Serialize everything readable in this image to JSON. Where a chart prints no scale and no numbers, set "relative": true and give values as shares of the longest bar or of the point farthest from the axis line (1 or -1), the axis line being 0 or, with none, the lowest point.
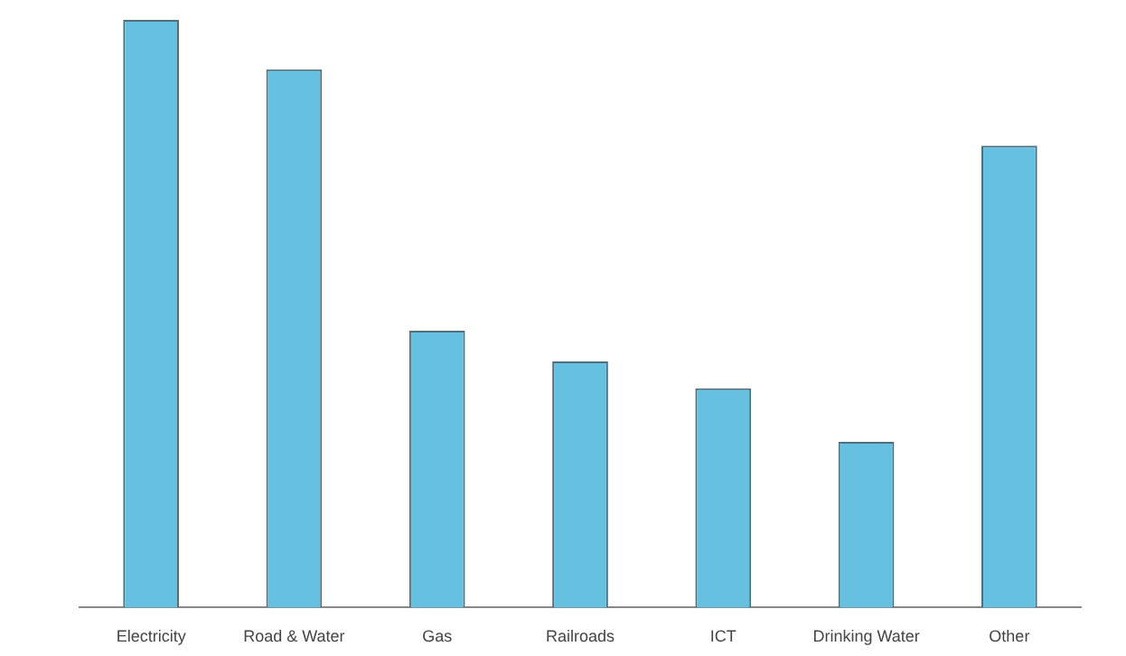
{
  "chart_data": {
    "type": "bar",
    "relative": true,
    "categories": [
      "Electricity",
      "Road & Water",
      "Gas",
      "Railroads",
      "ICT",
      "Drinking Water",
      "Other"
    ],
    "values": [
      1,
      0.916,
      0.471,
      0.419,
      0.373,
      0.282,
      0.786
    ],
    "color": "#66c0e0",
    "grid": false,
    "legend": false
  }
}
